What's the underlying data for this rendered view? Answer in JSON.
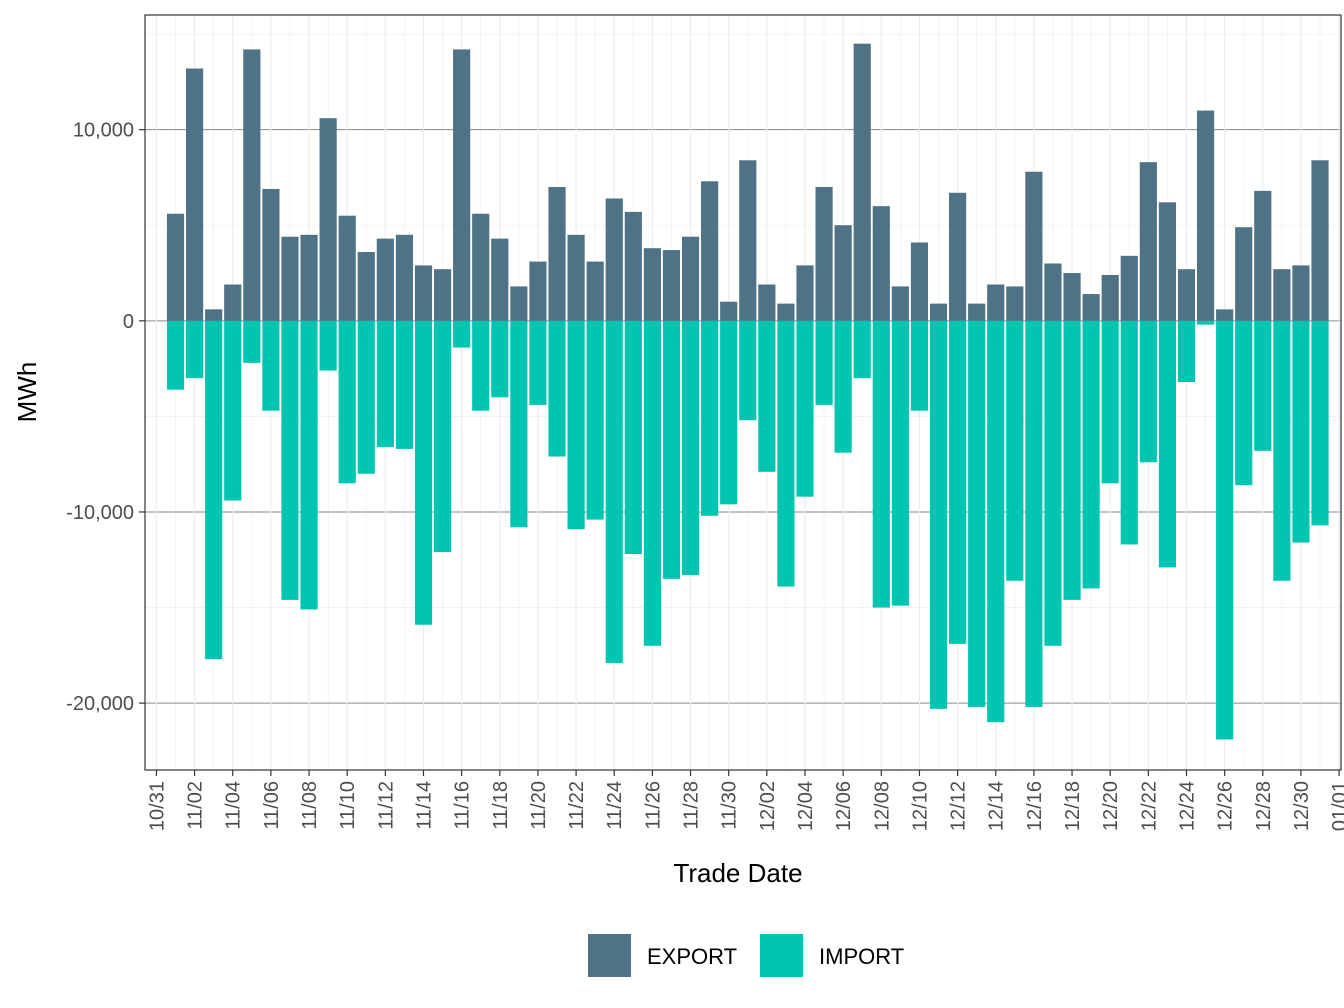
{
  "chart_data": {
    "type": "bar",
    "stacked": "diverging",
    "xlabel": "Trade Date",
    "ylabel": "MWh",
    "ylim": [
      -23500,
      16000
    ],
    "y_ticks": [
      -20000,
      -10000,
      0,
      10000
    ],
    "y_tick_labels": [
      "-20,000",
      "-10,000",
      "0",
      "10,000"
    ],
    "x_range_days": [
      -0.6,
      62.1
    ],
    "x_tick_days": [
      0,
      2,
      4,
      6,
      8,
      10,
      12,
      14,
      16,
      18,
      20,
      22,
      24,
      26,
      28,
      30,
      32,
      34,
      36,
      38,
      40,
      42,
      44,
      46,
      48,
      50,
      52,
      54,
      56,
      58,
      60,
      62
    ],
    "x_tick_labels": [
      "10/31",
      "11/02",
      "11/04",
      "11/06",
      "11/08",
      "11/10",
      "11/12",
      "11/14",
      "11/16",
      "11/18",
      "11/20",
      "11/22",
      "11/24",
      "11/26",
      "11/28",
      "11/30",
      "12/02",
      "12/04",
      "12/06",
      "12/08",
      "12/10",
      "12/12",
      "12/14",
      "12/16",
      "12/18",
      "12/20",
      "12/22",
      "12/24",
      "12/26",
      "12/28",
      "12/30",
      "01/01"
    ],
    "grid": true,
    "legend_position": "bottom",
    "series": [
      {
        "name": "EXPORT",
        "color": "#4f7287",
        "values": [
          5600,
          13200,
          600,
          1900,
          14200,
          6900,
          4400,
          4500,
          10600,
          5500,
          3600,
          4300,
          4500,
          2900,
          2700,
          14200,
          5600,
          4300,
          1800,
          3100,
          7000,
          4500,
          3100,
          6400,
          5700,
          3800,
          3700,
          4400,
          7300,
          1000,
          8400,
          1900,
          900,
          2900,
          7000,
          5000,
          14500,
          6000,
          1800,
          4100,
          900,
          6700,
          900,
          1900,
          1800,
          7800,
          3000,
          2500,
          1400,
          2400,
          3400,
          8300,
          6200,
          2700,
          11000,
          600,
          4900,
          6800,
          2700,
          2900,
          8400
        ]
      },
      {
        "name": "IMPORT",
        "color": "#00c5b1",
        "values": [
          -3600,
          -3000,
          -17700,
          -9400,
          -2200,
          -4700,
          -14600,
          -15100,
          -2600,
          -8500,
          -8000,
          -6600,
          -6700,
          -15900,
          -12100,
          -1400,
          -4700,
          -4000,
          -10800,
          -4400,
          -7100,
          -10900,
          -10400,
          -17900,
          -12200,
          -17000,
          -13500,
          -13300,
          -10200,
          -9600,
          -5200,
          -7900,
          -13900,
          -9200,
          -4400,
          -6900,
          -3000,
          -15000,
          -14900,
          -4700,
          -20300,
          -16900,
          -20200,
          -21000,
          -13600,
          -20200,
          -17000,
          -14600,
          -14000,
          -8500,
          -11700,
          -7400,
          -12900,
          -3200,
          -200,
          -21900,
          -8600,
          -6800,
          -13600,
          -11600,
          -10700
        ]
      }
    ]
  }
}
